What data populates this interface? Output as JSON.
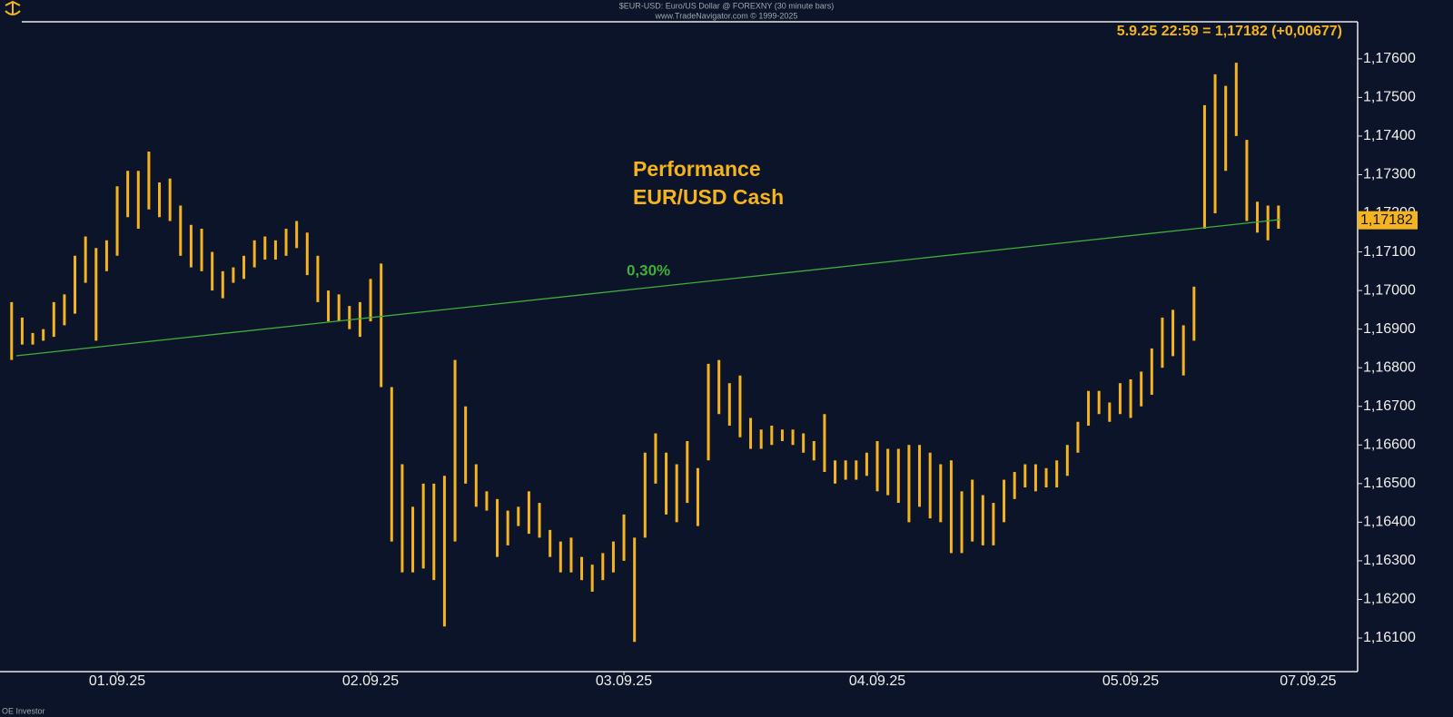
{
  "chart_data": {
    "type": "ohlc",
    "title": "$EUR-USD: Euro/US Dollar @ FOREXNY (30 minute bars)",
    "subtitle": "www.TradeNavigator.com © 1999-2025",
    "quote": "5.9.25 22:59 = 1,17182 (+0,00677)",
    "annotation": [
      "Performance",
      "EUR/USD Cash"
    ],
    "footer": "OE Investor",
    "last_price": {
      "value": 1.17182,
      "label": "1,17182"
    },
    "trend": {
      "label": "0,30%",
      "color": "#3fae3a",
      "x": [
        -9.55,
        110.2
      ],
      "y": [
        1.16831,
        1.17184
      ]
    },
    "xlim": [
      -11.1,
      117.5
    ],
    "ylim": [
      1.16013,
      1.17696
    ],
    "xticks": [
      {
        "value": 0,
        "label": "01.09.25"
      },
      {
        "value": 24,
        "label": "02.09.25"
      },
      {
        "value": 48,
        "label": "03.09.25"
      },
      {
        "value": 72,
        "label": "04.09.25"
      },
      {
        "value": 96,
        "label": "05.09.25"
      },
      {
        "value": 112.8,
        "label": "07.09.25"
      }
    ],
    "yticks": [
      {
        "value": 1.161,
        "label": "1,16100"
      },
      {
        "value": 1.162,
        "label": "1,16200"
      },
      {
        "value": 1.163,
        "label": "1,16300"
      },
      {
        "value": 1.164,
        "label": "1,16400"
      },
      {
        "value": 1.165,
        "label": "1,16500"
      },
      {
        "value": 1.166,
        "label": "1,16600"
      },
      {
        "value": 1.167,
        "label": "1,16700"
      },
      {
        "value": 1.168,
        "label": "1,16800"
      },
      {
        "value": 1.169,
        "label": "1,16900"
      },
      {
        "value": 1.17,
        "label": "1,17000"
      },
      {
        "value": 1.171,
        "label": "1,17100"
      },
      {
        "value": 1.172,
        "label": "1,17200"
      },
      {
        "value": 1.173,
        "label": "1,17300"
      },
      {
        "value": 1.174,
        "label": "1,17400"
      },
      {
        "value": 1.175,
        "label": "1,17500"
      },
      {
        "value": 1.176,
        "label": "1,17600"
      }
    ],
    "series": [
      {
        "color": "#f5b41e",
        "x": [
          -10,
          -9,
          -8,
          -7,
          -6,
          -5,
          -4,
          -3,
          -2,
          -1,
          0,
          1,
          2,
          3,
          4,
          5,
          6,
          7,
          8,
          9,
          10,
          11,
          12,
          13,
          14,
          15,
          16,
          17,
          18,
          19,
          20,
          21,
          22,
          23,
          24,
          25,
          26,
          27,
          28,
          29,
          30,
          31,
          32,
          33,
          34,
          35,
          36,
          37,
          38,
          39,
          40,
          41,
          42,
          43,
          44,
          45,
          46,
          47,
          48,
          49,
          50,
          51,
          52,
          53,
          54,
          55,
          56,
          57,
          58,
          59,
          60,
          61,
          62,
          63,
          64,
          65,
          66,
          67,
          68,
          69,
          70,
          71,
          72,
          73,
          74,
          75,
          76,
          77,
          78,
          79,
          80,
          81,
          82,
          83,
          84,
          85,
          86,
          87,
          88,
          89,
          90,
          91,
          92,
          93,
          94,
          95,
          96,
          97,
          98,
          99,
          100,
          101,
          102,
          103,
          104,
          105,
          106,
          107,
          108,
          109,
          110
        ],
        "high": [
          1.1697,
          1.1693,
          1.1689,
          1.169,
          1.1697,
          1.1699,
          1.1709,
          1.1714,
          1.1711,
          1.1713,
          1.1727,
          1.1731,
          1.1731,
          1.1736,
          1.1728,
          1.1729,
          1.1722,
          1.1717,
          1.1716,
          1.171,
          1.1705,
          1.1706,
          1.1709,
          1.1713,
          1.1714,
          1.1713,
          1.1716,
          1.1718,
          1.1715,
          1.1709,
          1.17,
          1.1699,
          1.1696,
          1.1697,
          1.1703,
          1.1707,
          1.1675,
          1.1655,
          1.1644,
          1.165,
          1.165,
          1.1652,
          1.1682,
          1.167,
          1.1655,
          1.1648,
          1.1646,
          1.1643,
          1.1644,
          1.1648,
          1.1645,
          1.1638,
          1.1635,
          1.1636,
          1.1631,
          1.1629,
          1.1632,
          1.1635,
          1.1642,
          1.1636,
          1.1658,
          1.1663,
          1.1658,
          1.1655,
          1.1661,
          1.1654,
          1.1681,
          1.1682,
          1.1676,
          1.1678,
          1.1667,
          1.1664,
          1.1665,
          1.1664,
          1.1664,
          1.1663,
          1.1661,
          1.1668,
          1.1656,
          1.1656,
          1.1656,
          1.1658,
          1.1661,
          1.1659,
          1.1659,
          1.166,
          1.166,
          1.1658,
          1.1655,
          1.1656,
          1.1648,
          1.1651,
          1.1647,
          1.1645,
          1.1651,
          1.1653,
          1.1655,
          1.1655,
          1.1654,
          1.1656,
          1.166,
          1.1666,
          1.1674,
          1.1674,
          1.1671,
          1.1676,
          1.1677,
          1.1679,
          1.1685,
          1.1693,
          1.1695,
          1.1691,
          1.1701,
          1.1748,
          1.1756,
          1.1753,
          1.1759,
          1.1739,
          1.1723,
          1.1722,
          1.1722
        ],
        "low": [
          1.1682,
          1.1686,
          1.1686,
          1.1687,
          1.1688,
          1.1691,
          1.1694,
          1.1702,
          1.1687,
          1.1705,
          1.1709,
          1.1719,
          1.1716,
          1.1721,
          1.1719,
          1.1718,
          1.1709,
          1.1706,
          1.1705,
          1.17,
          1.1698,
          1.1702,
          1.1703,
          1.1706,
          1.1708,
          1.1708,
          1.1709,
          1.1711,
          1.1704,
          1.1697,
          1.1692,
          1.1692,
          1.169,
          1.1688,
          1.1692,
          1.1675,
          1.1635,
          1.1627,
          1.1627,
          1.1628,
          1.1625,
          1.1613,
          1.1635,
          1.165,
          1.1644,
          1.1643,
          1.1631,
          1.1634,
          1.1639,
          1.1637,
          1.1636,
          1.1631,
          1.1627,
          1.1627,
          1.1625,
          1.1622,
          1.1625,
          1.1627,
          1.163,
          1.1609,
          1.1636,
          1.165,
          1.1642,
          1.164,
          1.1645,
          1.1639,
          1.1656,
          1.1668,
          1.1665,
          1.1662,
          1.1659,
          1.1659,
          1.166,
          1.1661,
          1.166,
          1.1658,
          1.1656,
          1.1653,
          1.165,
          1.1651,
          1.1651,
          1.1652,
          1.1648,
          1.1647,
          1.1645,
          1.164,
          1.1644,
          1.1641,
          1.164,
          1.1632,
          1.1632,
          1.1635,
          1.1634,
          1.1634,
          1.164,
          1.1646,
          1.1649,
          1.1648,
          1.1649,
          1.1649,
          1.1652,
          1.1658,
          1.1665,
          1.1668,
          1.1666,
          1.1668,
          1.1667,
          1.167,
          1.1673,
          1.168,
          1.1683,
          1.1678,
          1.1687,
          1.1716,
          1.172,
          1.1731,
          1.174,
          1.1718,
          1.1715,
          1.1713,
          1.1716
        ]
      }
    ]
  }
}
